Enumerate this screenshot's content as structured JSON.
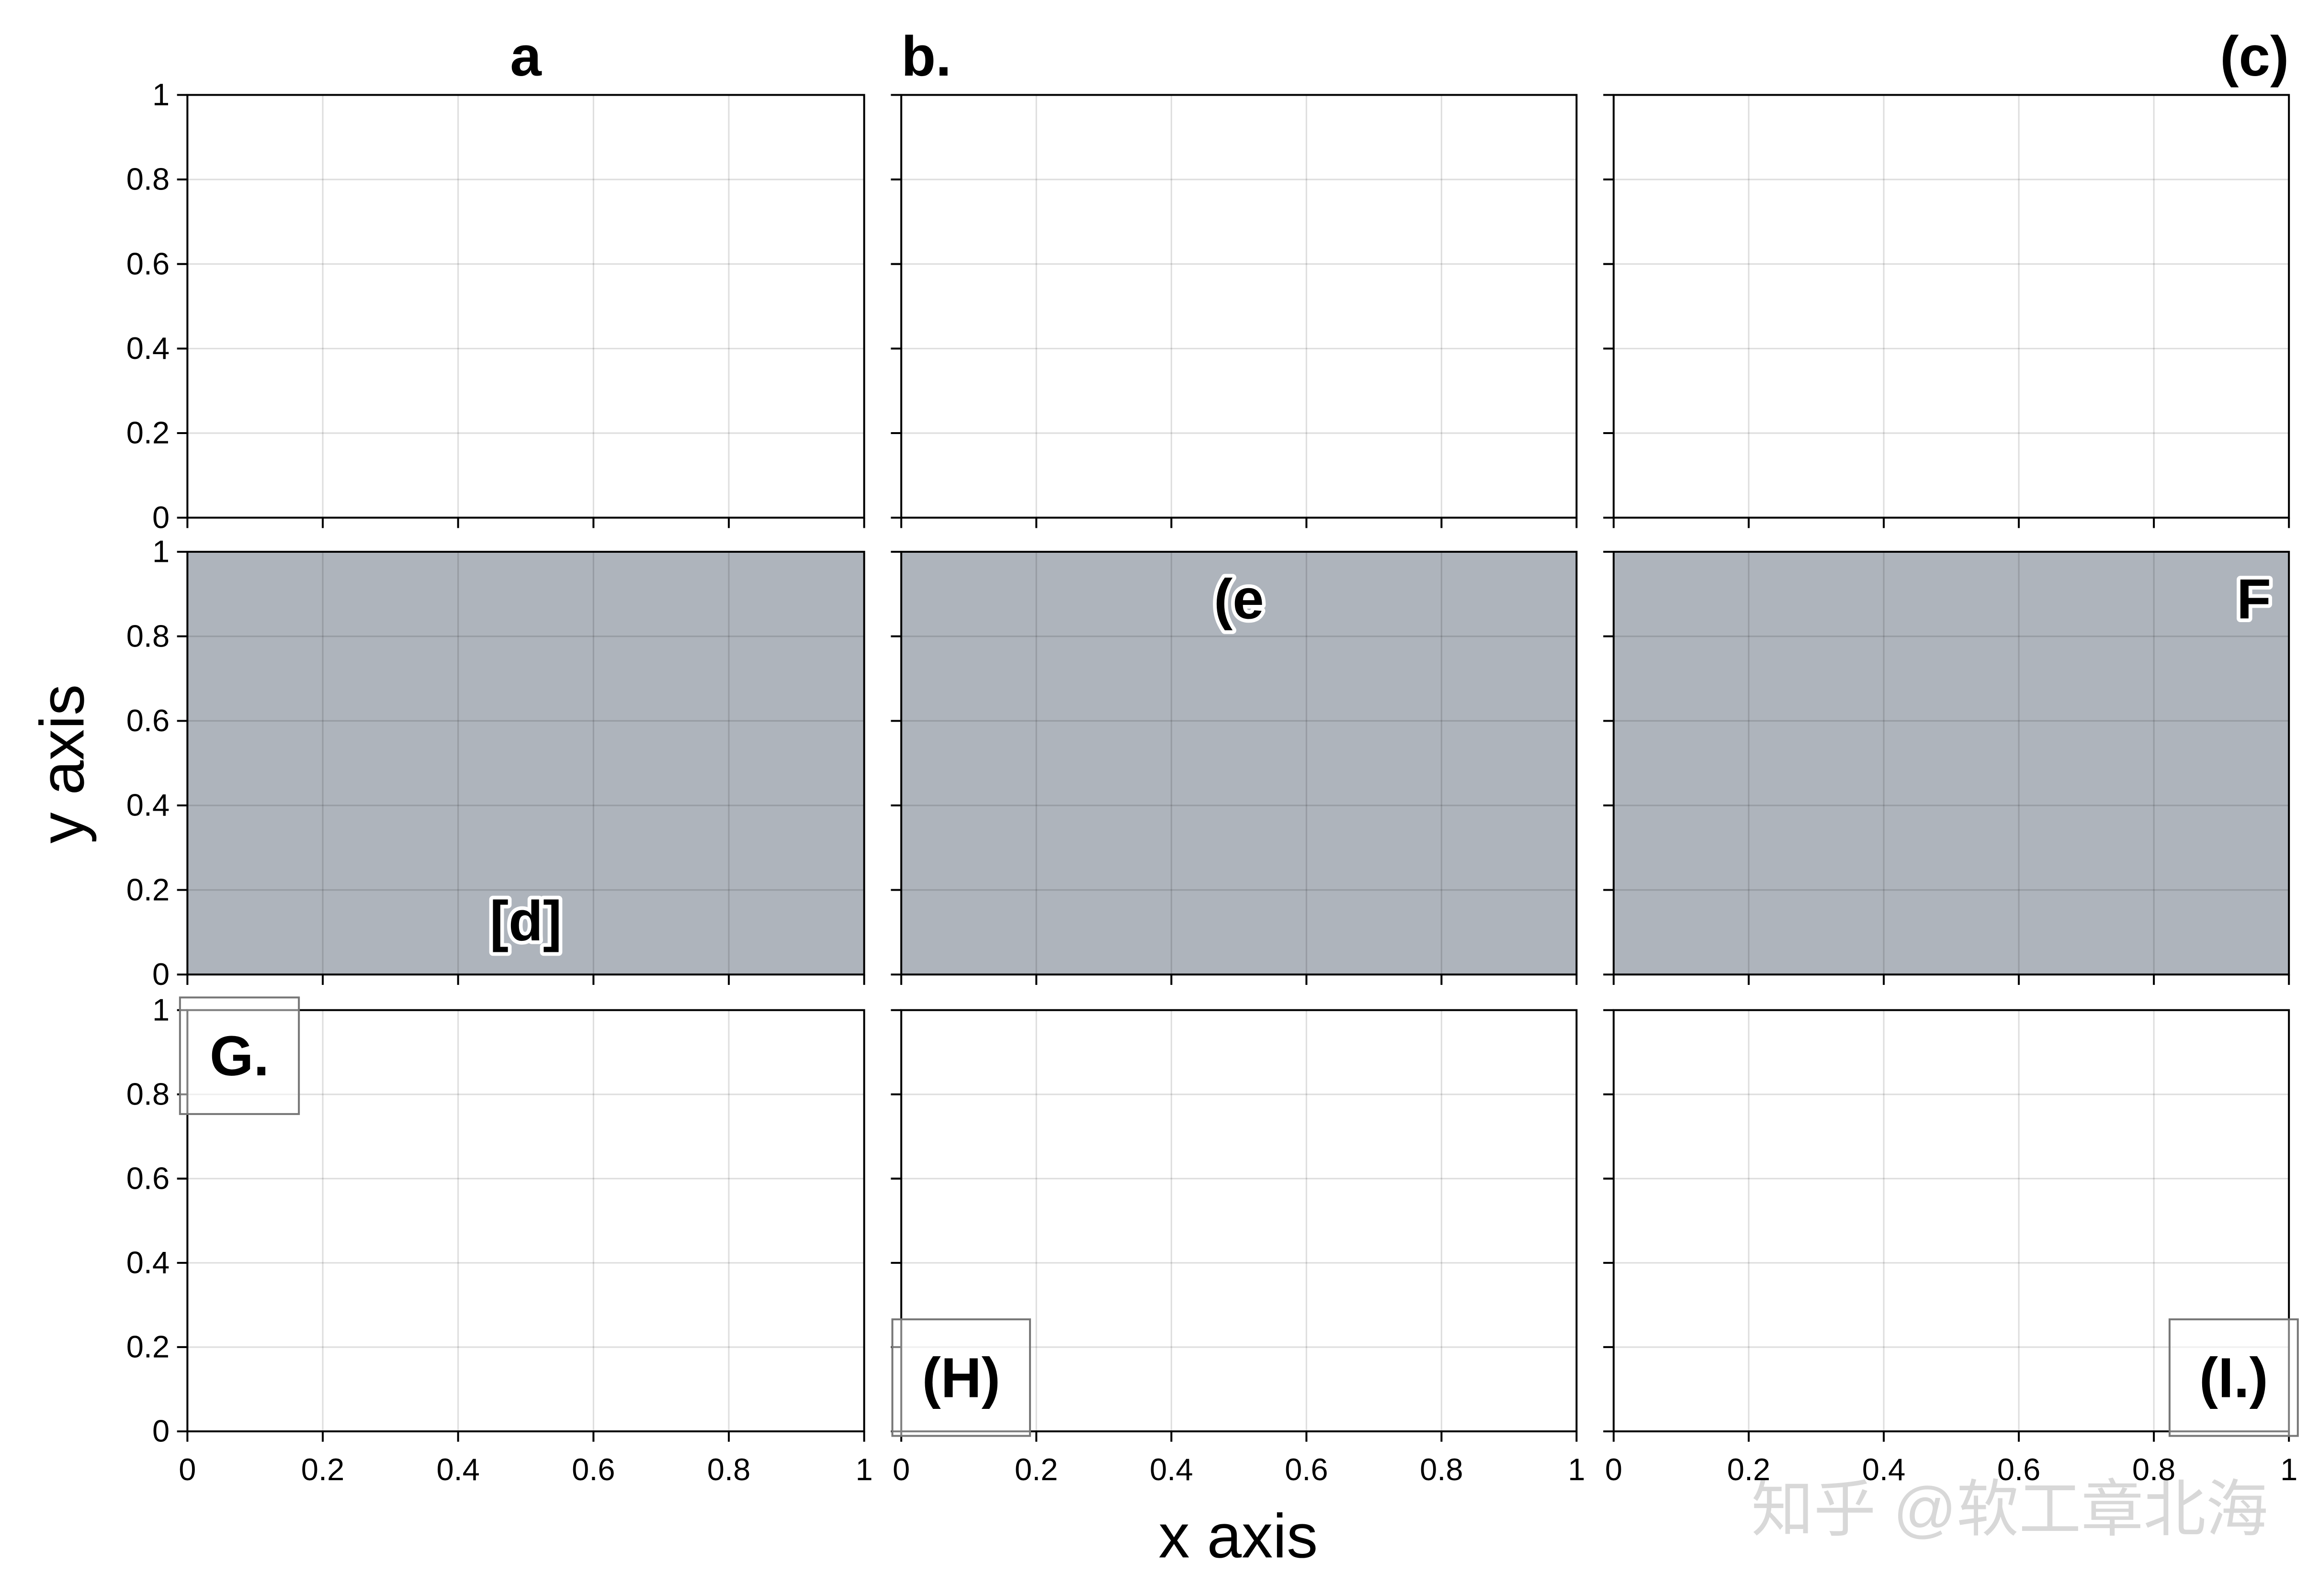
{
  "figure": {
    "xlabel": "x axis",
    "ylabel": "y axis",
    "watermark": "知乎 @软工章北海"
  },
  "chart_data": [
    {
      "type": "blank",
      "label": "a",
      "label_loc": "title-center",
      "label_box": false,
      "facecolor": "#ffffff",
      "grid": true,
      "xlim": [
        0,
        1
      ],
      "ylim": [
        0,
        1
      ],
      "xticks": [
        0,
        0.2,
        0.4,
        0.6,
        0.8,
        1
      ],
      "yticks": [
        0,
        0.2,
        0.4,
        0.6,
        0.8,
        1
      ]
    },
    {
      "type": "blank",
      "label": "b.",
      "label_loc": "title-left",
      "label_box": false,
      "facecolor": "#ffffff",
      "grid": true,
      "xlim": [
        0,
        1
      ],
      "ylim": [
        0,
        1
      ],
      "xticks": [
        0,
        0.2,
        0.4,
        0.6,
        0.8,
        1
      ],
      "yticks": [
        0,
        0.2,
        0.4,
        0.6,
        0.8,
        1
      ]
    },
    {
      "type": "blank",
      "label": "(c)",
      "label_loc": "title-right",
      "label_box": false,
      "facecolor": "#ffffff",
      "grid": true,
      "xlim": [
        0,
        1
      ],
      "ylim": [
        0,
        1
      ],
      "xticks": [
        0,
        0.2,
        0.4,
        0.6,
        0.8,
        1
      ],
      "yticks": [
        0,
        0.2,
        0.4,
        0.6,
        0.8,
        1
      ]
    },
    {
      "type": "blank",
      "label": "[d]",
      "label_loc": "lower-center",
      "label_box": false,
      "facecolor": "#aeb4bc",
      "grid": true,
      "xlim": [
        0,
        1
      ],
      "ylim": [
        0,
        1
      ],
      "xticks": [
        0,
        0.2,
        0.4,
        0.6,
        0.8,
        1
      ],
      "yticks": [
        0,
        0.2,
        0.4,
        0.6,
        0.8,
        1
      ]
    },
    {
      "type": "blank",
      "label": "(e",
      "label_loc": "upper-center",
      "label_box": false,
      "facecolor": "#aeb4bc",
      "grid": true,
      "xlim": [
        0,
        1
      ],
      "ylim": [
        0,
        1
      ],
      "xticks": [
        0,
        0.2,
        0.4,
        0.6,
        0.8,
        1
      ],
      "yticks": [
        0,
        0.2,
        0.4,
        0.6,
        0.8,
        1
      ]
    },
    {
      "type": "blank",
      "label": "F",
      "label_loc": "upper-right",
      "label_box": false,
      "facecolor": "#aeb4bc",
      "grid": true,
      "xlim": [
        0,
        1
      ],
      "ylim": [
        0,
        1
      ],
      "xticks": [
        0,
        0.2,
        0.4,
        0.6,
        0.8,
        1
      ],
      "yticks": [
        0,
        0.2,
        0.4,
        0.6,
        0.8,
        1
      ]
    },
    {
      "type": "blank",
      "label": "G.",
      "label_loc": "upper-left",
      "label_box": true,
      "facecolor": "#ffffff",
      "grid": true,
      "xlim": [
        0,
        1
      ],
      "ylim": [
        0,
        1
      ],
      "xticks": [
        0,
        0.2,
        0.4,
        0.6,
        0.8,
        1
      ],
      "yticks": [
        0,
        0.2,
        0.4,
        0.6,
        0.8,
        1
      ]
    },
    {
      "type": "blank",
      "label": "(H)",
      "label_loc": "lower-left",
      "label_box": true,
      "facecolor": "#ffffff",
      "grid": true,
      "xlim": [
        0,
        1
      ],
      "ylim": [
        0,
        1
      ],
      "xticks": [
        0,
        0.2,
        0.4,
        0.6,
        0.8,
        1
      ],
      "yticks": [
        0,
        0.2,
        0.4,
        0.6,
        0.8,
        1
      ]
    },
    {
      "type": "blank",
      "label": "(I.)",
      "label_loc": "lower-right",
      "label_box": true,
      "facecolor": "#ffffff",
      "grid": true,
      "xlim": [
        0,
        1
      ],
      "ylim": [
        0,
        1
      ],
      "xticks": [
        0,
        0.2,
        0.4,
        0.6,
        0.8,
        1
      ],
      "yticks": [
        0,
        0.2,
        0.4,
        0.6,
        0.8,
        1
      ]
    }
  ]
}
